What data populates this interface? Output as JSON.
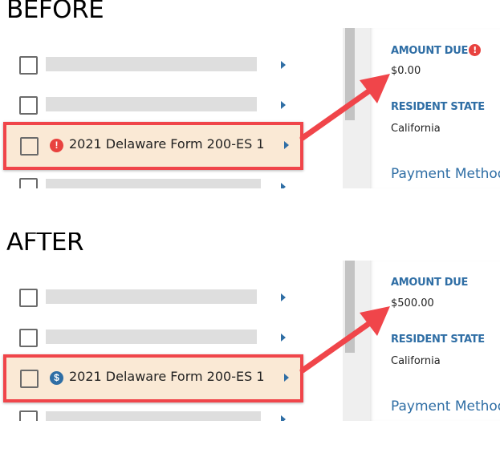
{
  "panels": [
    {
      "caption": "BEFORE",
      "item_name": "2021 Delaware Form 200-ES 1",
      "item_icon": "exclamation-icon",
      "item_icon_glyph": "!",
      "item_icon_color": "#e8423f",
      "amount_due_label": "AMOUNT DUE",
      "amount_due_warning": "!",
      "amount_due": "$0.00",
      "resident_state_label": "RESIDENT STATE",
      "resident_state": "California",
      "payment_method": "Payment Method"
    },
    {
      "caption": "AFTER",
      "item_name": "2021 Delaware Form 200-ES 1",
      "item_icon": "dollar-icon",
      "item_icon_glyph": "$",
      "item_icon_color": "#2f6ea5",
      "amount_due_label": "AMOUNT DUE",
      "amount_due": "$500.00",
      "resident_state_label": "RESIDENT STATE",
      "resident_state": "California",
      "payment_method": "Payment Method"
    }
  ],
  "colors": {
    "highlight_border": "#f0454a",
    "highlight_fill": "#fae9d5",
    "accent": "#2f6ea5"
  }
}
